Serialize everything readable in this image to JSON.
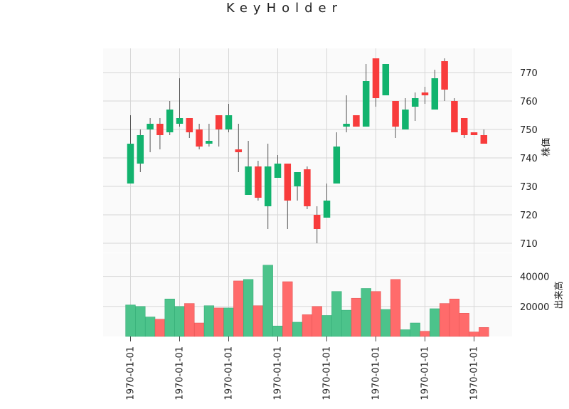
{
  "chart_data": {
    "type": "candlestick",
    "title": "KeyHolder",
    "price_ylabel": "株価",
    "volume_ylabel": "出来高",
    "price_ylim": [
      705,
      779
    ],
    "price_ticks": [
      710,
      720,
      730,
      740,
      750,
      760,
      770
    ],
    "volume_ylim": [
      0,
      50000
    ],
    "volume_ticks": [
      20000,
      40000
    ],
    "x_tick_labels": [
      "1970-01-01",
      "1970-01-01",
      "1970-01-01",
      "1970-01-01",
      "1970-01-01",
      "1970-01-01",
      "1970-01-01",
      "1970-01-01"
    ],
    "x_tick_index": [
      0.5,
      5.5,
      10.5,
      15.5,
      20.5,
      25.5,
      30.5,
      35.5
    ],
    "grid": true,
    "colors": {
      "up": "#12b36e",
      "down": "#f83c3c",
      "up_volume": "#4cc38b",
      "down_volume": "#ff6b6b",
      "background": "#fafafa",
      "grid": "#d7d7d7"
    },
    "candles": [
      {
        "open": 731,
        "high": 755,
        "low": 731,
        "close": 745
      },
      {
        "open": 738,
        "high": 750,
        "low": 735,
        "close": 748
      },
      {
        "open": 750,
        "high": 754,
        "low": 742,
        "close": 752
      },
      {
        "open": 752,
        "high": 754,
        "low": 743,
        "close": 748
      },
      {
        "open": 749,
        "high": 760,
        "low": 748,
        "close": 757
      },
      {
        "open": 752,
        "high": 768,
        "low": 751,
        "close": 754
      },
      {
        "open": 754,
        "high": 754,
        "low": 747,
        "close": 749
      },
      {
        "open": 750,
        "high": 752,
        "low": 743,
        "close": 744
      },
      {
        "open": 745,
        "high": 752,
        "low": 744,
        "close": 746
      },
      {
        "open": 755,
        "high": 755,
        "low": 744,
        "close": 750
      },
      {
        "open": 750,
        "high": 759,
        "low": 749,
        "close": 755
      },
      {
        "open": 743,
        "high": 752,
        "low": 735,
        "close": 742
      },
      {
        "open": 727,
        "high": 746,
        "low": 727,
        "close": 737
      },
      {
        "open": 737,
        "high": 739,
        "low": 725,
        "close": 726
      },
      {
        "open": 723,
        "high": 745,
        "low": 715,
        "close": 737
      },
      {
        "open": 733,
        "high": 741,
        "low": 733,
        "close": 738
      },
      {
        "open": 738,
        "high": 738,
        "low": 715,
        "close": 725
      },
      {
        "open": 730,
        "high": 735,
        "low": 725,
        "close": 735
      },
      {
        "open": 736,
        "high": 737,
        "low": 722,
        "close": 723
      },
      {
        "open": 720,
        "high": 723,
        "low": 710,
        "close": 715
      },
      {
        "open": 719,
        "high": 731,
        "low": 719,
        "close": 725
      },
      {
        "open": 731,
        "high": 749,
        "low": 731,
        "close": 744
      },
      {
        "open": 751,
        "high": 762,
        "low": 749,
        "close": 752
      },
      {
        "open": 755,
        "high": 755,
        "low": 751,
        "close": 751
      },
      {
        "open": 751,
        "high": 773,
        "low": 751,
        "close": 767
      },
      {
        "open": 775,
        "high": 775,
        "low": 758,
        "close": 761
      },
      {
        "open": 762,
        "high": 773,
        "low": 762,
        "close": 773
      },
      {
        "open": 760,
        "high": 760,
        "low": 747,
        "close": 751
      },
      {
        "open": 750,
        "high": 761,
        "low": 750,
        "close": 757
      },
      {
        "open": 758,
        "high": 763,
        "low": 753,
        "close": 761
      },
      {
        "open": 763,
        "high": 765,
        "low": 759,
        "close": 762
      },
      {
        "open": 757,
        "high": 771,
        "low": 757,
        "close": 768
      },
      {
        "open": 774,
        "high": 775,
        "low": 760,
        "close": 764
      },
      {
        "open": 760,
        "high": 761,
        "low": 749,
        "close": 749
      },
      {
        "open": 754,
        "high": 754,
        "low": 747,
        "close": 748
      },
      {
        "open": 749,
        "high": 749,
        "low": 748,
        "close": 748
      },
      {
        "open": 748,
        "high": 750,
        "low": 745,
        "close": 745
      }
    ],
    "volumes": [
      21000,
      20000,
      13000,
      11500,
      25000,
      20000,
      22000,
      9000,
      20500,
      19000,
      19000,
      37000,
      38000,
      20500,
      47500,
      7000,
      36500,
      9500,
      14500,
      20000,
      14000,
      30000,
      17500,
      25500,
      32000,
      30000,
      18000,
      38000,
      4500,
      9000,
      3500,
      18500,
      22000,
      25000,
      15500,
      3000,
      6000
    ]
  }
}
